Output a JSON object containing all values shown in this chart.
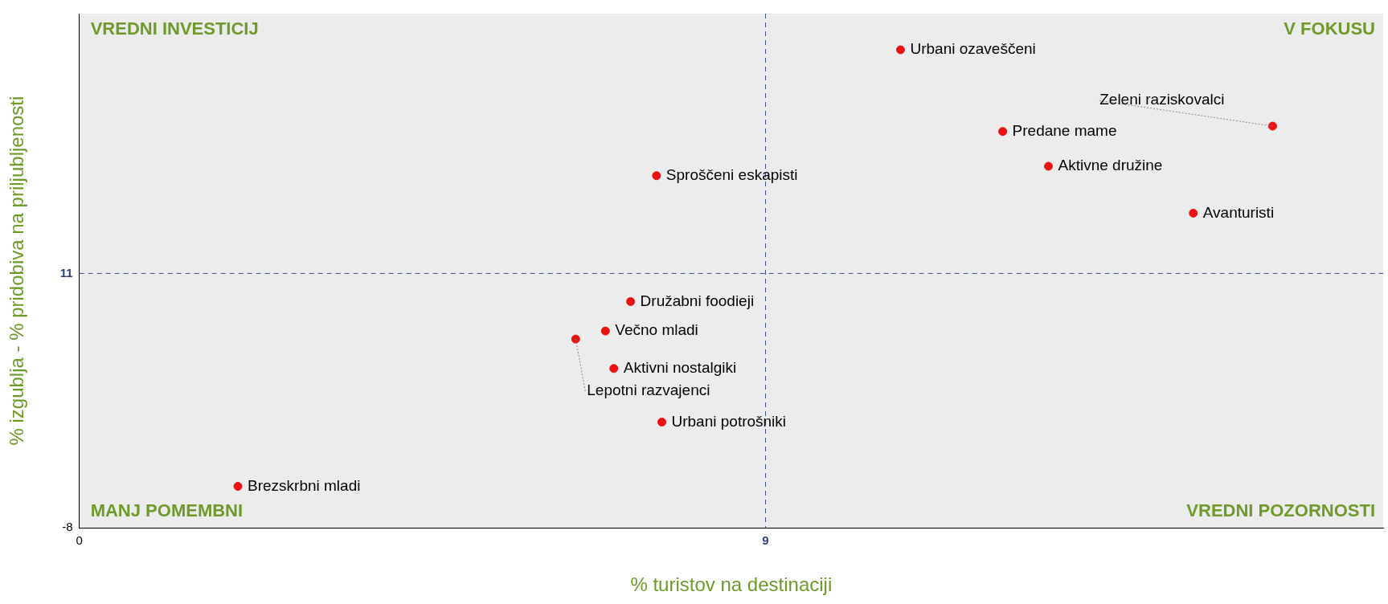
{
  "chart_data": {
    "type": "scatter",
    "xlabel": "% turistov na destinaciji",
    "ylabel": "% izgublja - % pridobiva na priljubljenosti",
    "x": [
      10.77,
      15.65,
      12.11,
      12.71,
      14.61,
      7.57,
      7.23,
      6.9,
      6.51,
      7.01,
      7.64,
      2.08
    ],
    "values": [
      27.7,
      22.0,
      21.6,
      19.0,
      15.5,
      18.3,
      8.9,
      6.7,
      6.1,
      3.9,
      -0.1,
      -4.9
    ],
    "color": "#ee1111",
    "marker": "circle",
    "grid": false,
    "legend": false,
    "xlim": [
      0,
      17.1
    ],
    "ylim": [
      -8,
      30.4
    ],
    "xticks": [
      0,
      9
    ],
    "yticks": [
      -8,
      11
    ],
    "ref_lines": [
      {
        "axis": "x",
        "value": 9,
        "color": "#3b4f8f",
        "line_style": "dashed"
      },
      {
        "axis": "y",
        "value": 11,
        "color": "#3b4f8f",
        "line_style": "dashed"
      }
    ],
    "annotations": [
      "VREDNI INVESTICIJ",
      "V FOKUSU",
      "MANJ POMEMBNI",
      "VREDNI POZORNOSTI",
      {
        "text": "Urbani ozaveščeni",
        "x": 10.77,
        "y": 27.7
      },
      {
        "text": "Zeleni raziskovalci",
        "x": 15.65,
        "y": 22.0
      },
      {
        "text": "Predane mame",
        "x": 12.11,
        "y": 21.6
      },
      {
        "text": "Aktivne družine",
        "x": 12.71,
        "y": 19.0
      },
      {
        "text": "Avanturisti",
        "x": 14.61,
        "y": 15.5
      },
      {
        "text": "Sproščeni eskapisti",
        "x": 7.57,
        "y": 18.3
      },
      {
        "text": "Družabni foodieji",
        "x": 7.23,
        "y": 8.9
      },
      {
        "text": "Večno mladi",
        "x": 6.9,
        "y": 6.7
      },
      {
        "text": "Lepotni razvajenci",
        "x": 6.51,
        "y": 6.1
      },
      {
        "text": "Aktivni nostalgiki",
        "x": 7.01,
        "y": 3.9
      },
      {
        "text": "Urbani potrošniki",
        "x": 7.64,
        "y": -0.1
      },
      {
        "text": "Brezskrbni mladi",
        "x": 2.08,
        "y": -4.9
      }
    ]
  }
}
